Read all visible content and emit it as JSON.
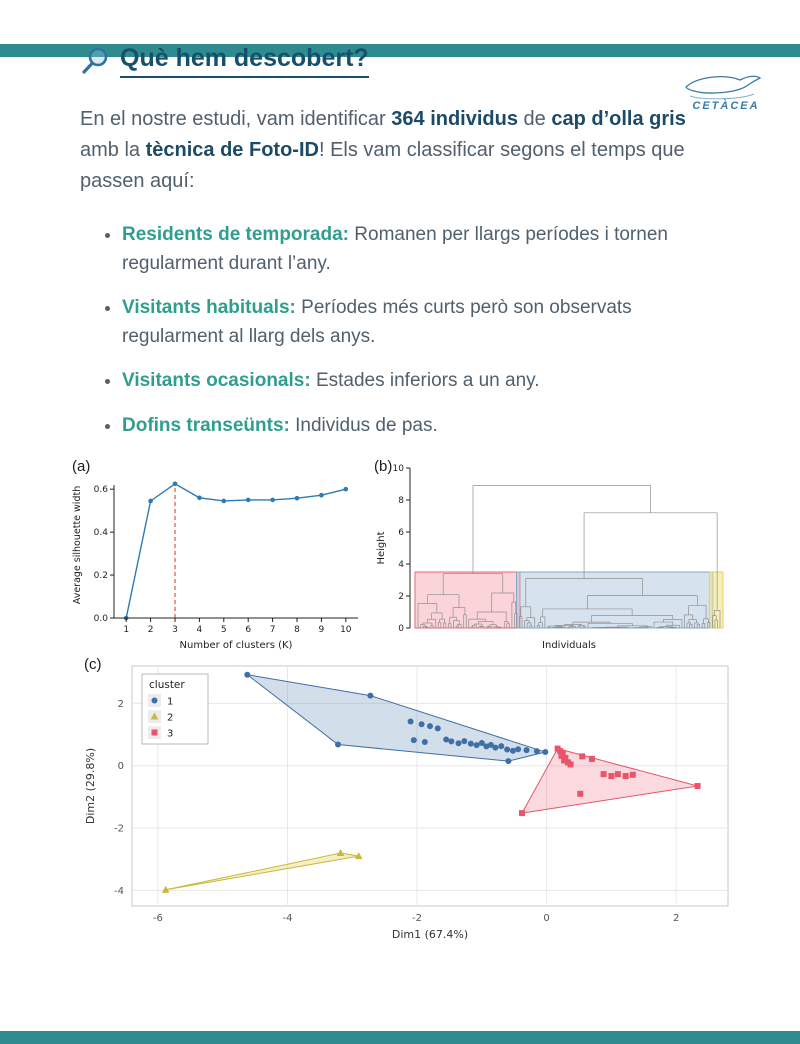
{
  "page": {
    "accent_color": "#2e8c90",
    "heading_color": "#17506b",
    "teal_color": "#2f9e8e"
  },
  "header": {
    "title": "Què hem descobert?",
    "logo_text": "CETÀCEA"
  },
  "intro": {
    "pre": "En el nostre estudi, vam identificar ",
    "bold1": "364 individus",
    "mid1": " de ",
    "bold2": "cap d’olla gris",
    "mid2": " amb la ",
    "bold3": "tècnica de Foto-ID",
    "post": "! Els vam classificar segons el temps que passen aquí:"
  },
  "bullets": [
    {
      "lead": "Residents de temporada:",
      "text": "Romanen per llargs períodes i tornen regularment durant l’any."
    },
    {
      "lead": "Visitants habituals:",
      "text": "Períodes més curts però son observats regularment al llarg dels anys."
    },
    {
      "lead": "Visitants ocasionals:",
      "text": "Estades inferiors a un any."
    },
    {
      "lead": "Dofins transeünts:",
      "text": "Individus de pas."
    }
  ],
  "panels": {
    "a": "(a)",
    "b": "(b)",
    "c": "(c)"
  },
  "chart_data": [
    {
      "type": "line",
      "panel": "a",
      "x": [
        1,
        2,
        3,
        4,
        5,
        6,
        7,
        8,
        9,
        10
      ],
      "values": [
        0.0,
        0.545,
        0.625,
        0.56,
        0.545,
        0.55,
        0.55,
        0.558,
        0.572,
        0.6
      ],
      "xlabel": "Number of clusters (K)",
      "ylabel": "Average silhouette width",
      "xlim": [
        0.5,
        10.5
      ],
      "ylim": [
        0,
        0.68
      ],
      "yticks": [
        0.0,
        0.2,
        0.4,
        0.6
      ],
      "vline": 3,
      "vline_top": 0.625,
      "vline_color": "#d9544f",
      "color": "#2d7bb5"
    },
    {
      "type": "dendrogram",
      "panel": "b",
      "xlabel": "Individuals",
      "ylabel": "Height",
      "ylim": [
        0,
        10
      ],
      "yticks": [
        0,
        2,
        4,
        6,
        8,
        10
      ],
      "box_top": 3.5,
      "line_color": "#8f8f8f",
      "clusters": [
        {
          "name": "cluster-3-red",
          "leaves": 40,
          "root_h": 3.4,
          "seed": 11,
          "color": "#e66a79",
          "fill": "rgba(244,160,170,0.45)"
        },
        {
          "name": "cluster-1-blue",
          "leaves": 76,
          "root_h": 3.1,
          "seed": 23,
          "color": "#8aa7c7",
          "fill": "rgba(164,190,216,0.45)"
        },
        {
          "name": "cluster-2-yellow",
          "leaves": 4,
          "root_h": 1.1,
          "seed": 5,
          "color": "#e3d45c",
          "fill": "rgba(240,225,130,0.55)"
        }
      ],
      "joins": [
        {
          "left": 1,
          "right": 2,
          "h": 7.2
        },
        {
          "left": 0,
          "right": -1,
          "h": 8.9
        }
      ]
    },
    {
      "type": "scatter",
      "panel": "c",
      "xlabel": "Dim1 (67.4%)",
      "ylabel": "Dim2 (29.8%)",
      "xlim": [
        -6.4,
        2.8
      ],
      "ylim": [
        -4.5,
        3.2
      ],
      "xticks": [
        -6,
        -4,
        -2,
        0,
        2
      ],
      "yticks": [
        -4,
        -2,
        0,
        2
      ],
      "legend_title": "cluster",
      "series": [
        {
          "name": "1",
          "shape": "circle",
          "color": "#3e6fa7",
          "fill": "rgba(110,145,190,0.30)",
          "points": [
            [
              -4.62,
              2.92
            ],
            [
              -2.72,
              2.25
            ],
            [
              -3.22,
              0.68
            ],
            [
              -2.1,
              1.42
            ],
            [
              -1.93,
              1.33
            ],
            [
              -1.8,
              1.27
            ],
            [
              -1.68,
              1.2
            ],
            [
              -2.05,
              0.82
            ],
            [
              -1.88,
              0.76
            ],
            [
              -1.55,
              0.84
            ],
            [
              -1.47,
              0.78
            ],
            [
              -1.36,
              0.72
            ],
            [
              -1.27,
              0.79
            ],
            [
              -1.17,
              0.71
            ],
            [
              -1.08,
              0.66
            ],
            [
              -1.0,
              0.73
            ],
            [
              -0.93,
              0.62
            ],
            [
              -0.86,
              0.67
            ],
            [
              -0.79,
              0.58
            ],
            [
              -0.7,
              0.63
            ],
            [
              -0.61,
              0.52
            ],
            [
              -0.52,
              0.48
            ],
            [
              -0.44,
              0.53
            ],
            [
              -0.31,
              0.5
            ],
            [
              -0.59,
              0.15
            ],
            [
              -0.15,
              0.47
            ],
            [
              -0.02,
              0.44
            ]
          ]
        },
        {
          "name": "2",
          "shape": "triangle",
          "color": "#c9b93a",
          "fill": "rgba(220,205,90,0.35)",
          "points": [
            [
              -5.88,
              -3.98
            ],
            [
              -3.18,
              -2.8
            ],
            [
              -2.9,
              -2.9
            ]
          ]
        },
        {
          "name": "3",
          "shape": "square",
          "color": "#e8556a",
          "fill": "rgba(240,130,150,0.30)",
          "points": [
            [
              0.17,
              0.55
            ],
            [
              0.21,
              0.47
            ],
            [
              0.25,
              0.4
            ],
            [
              0.23,
              0.32
            ],
            [
              0.29,
              0.25
            ],
            [
              0.27,
              0.17
            ],
            [
              0.33,
              0.11
            ],
            [
              0.37,
              0.04
            ],
            [
              0.55,
              0.3
            ],
            [
              0.7,
              0.22
            ],
            [
              0.88,
              -0.27
            ],
            [
              1.0,
              -0.33
            ],
            [
              1.1,
              -0.27
            ],
            [
              1.22,
              -0.33
            ],
            [
              1.33,
              -0.29
            ],
            [
              0.52,
              -0.9
            ],
            [
              -0.38,
              -1.52
            ],
            [
              2.33,
              -0.65
            ]
          ]
        }
      ]
    }
  ]
}
